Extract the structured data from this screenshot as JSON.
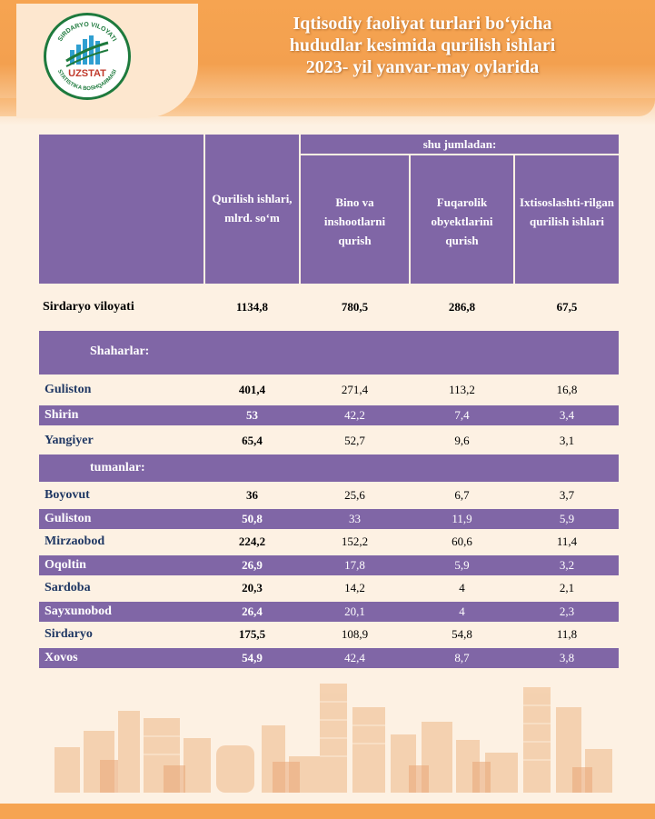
{
  "header": {
    "title_lines": [
      "Iqtisodiy faoliyat turlari bo‘yicha",
      "hududlar kesimida qurilish ishlari",
      "2023- yil yanvar-may oylarida"
    ],
    "logo": {
      "ring_text_top": "SIRDARYO VILOYATI",
      "ring_text_bottom": "STATISTIKA BOSHQARMASI",
      "brand": "UZSTAT"
    }
  },
  "table": {
    "header": {
      "col_total": "Qurilish ishlari, mlrd. so‘m",
      "group_label": "shu jumladan:",
      "col_bino": "Bino va inshootlarni qurish",
      "col_fuqarolik": "Fuqarolik obyektlarini qurish",
      "col_ixtisos": "Ixtisoslashti-rilgan qurilish ishlari"
    },
    "region": {
      "name": "Sirdaryo viloyati",
      "total": "1134,8",
      "bino": "780,5",
      "fuqarolik": "286,8",
      "ixtisos": "67,5"
    },
    "section_cities": "Shaharlar:",
    "cities": [
      {
        "name": "Guliston",
        "total": "401,4",
        "bino": "271,4",
        "fuqarolik": "113,2",
        "ixtisos": "16,8"
      },
      {
        "name": "Shirin",
        "total": "53",
        "bino": "42,2",
        "fuqarolik": "7,4",
        "ixtisos": "3,4"
      },
      {
        "name": "Yangiyer",
        "total": "65,4",
        "bino": "52,7",
        "fuqarolik": "9,6",
        "ixtisos": "3,1"
      }
    ],
    "section_districts": "tumanlar:",
    "districts": [
      {
        "name": "Boyovut",
        "total": "36",
        "bino": "25,6",
        "fuqarolik": "6,7",
        "ixtisos": "3,7"
      },
      {
        "name": "Guliston",
        "total": "50,8",
        "bino": "33",
        "fuqarolik": "11,9",
        "ixtisos": "5,9"
      },
      {
        "name": "Mirzaobod",
        "total": "224,2",
        "bino": "152,2",
        "fuqarolik": "60,6",
        "ixtisos": "11,4"
      },
      {
        "name": "Oqoltin",
        "total": "26,9",
        "bino": "17,8",
        "fuqarolik": "5,9",
        "ixtisos": "3,2"
      },
      {
        "name": "Sardoba",
        "total": "20,3",
        "bino": "14,2",
        "fuqarolik": "4",
        "ixtisos": "2,1"
      },
      {
        "name": "Sayxunobod",
        "total": "26,4",
        "bino": "20,1",
        "fuqarolik": "4",
        "ixtisos": "2,3"
      },
      {
        "name": "Sirdaryo",
        "total": "175,5",
        "bino": "108,9",
        "fuqarolik": "54,8",
        "ixtisos": "11,8"
      },
      {
        "name": "Xovos",
        "total": "54,9",
        "bino": "42,4",
        "fuqarolik": "8,7",
        "ixtisos": "3,8"
      }
    ]
  },
  "colors": {
    "header_orange": "#f6a451",
    "table_purple": "#8066a6",
    "page_background": "#fdf1e3",
    "name_navy": "#203864"
  }
}
